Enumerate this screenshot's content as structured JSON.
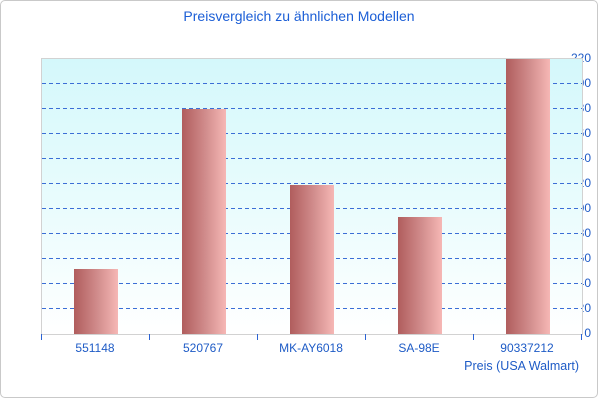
{
  "chart_data": {
    "type": "bar",
    "title": "Preisvergleich zu ähnlichen Modellen",
    "categories": [
      "551148",
      "520767",
      "MK-AY6018",
      "SA-98E",
      "90337212"
    ],
    "values": [
      52,
      180,
      119,
      94,
      220
    ],
    "xlabel": "Preis (USA Walmart)",
    "ylabel": "",
    "ylim": [
      0,
      220
    ],
    "ytick_step": 20,
    "grid": "horizontal-dashed",
    "legend_position": "none",
    "colors": {
      "title_text": "#1b5ed6",
      "axis_text": "#1e5bc6",
      "gridline": "#3b6ed6",
      "bar_gradient_left": "#b05d5d",
      "bar_gradient_right": "#f6b7b5",
      "plot_bg_top": "#d4f8fb",
      "plot_bg_bottom": "#ffffff",
      "plot_border": "#d2d2d2",
      "card_border": "#c9c9c9"
    }
  }
}
